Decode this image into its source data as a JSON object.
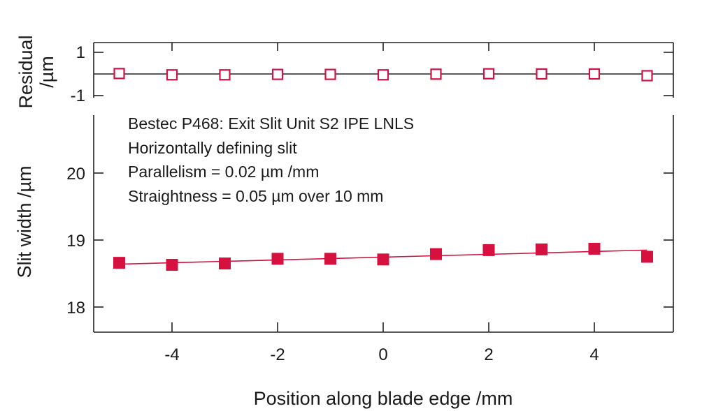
{
  "chart_data": [
    {
      "type": "scatter",
      "panel": "residual",
      "ylabel_lines": [
        "Residual",
        "/µm"
      ],
      "xlim": [
        -5.5,
        5.5
      ],
      "ylim": [
        -1.1,
        1.1
      ],
      "yticks": [
        1,
        -1
      ],
      "ytick_labels": [
        "1",
        "-1"
      ],
      "baseline": 0,
      "series": [
        {
          "marker": "open-square",
          "color": "#cc1446",
          "x": [
            -5,
            -4,
            -3,
            -2,
            -1,
            0,
            1,
            2,
            3,
            4,
            5
          ],
          "y": [
            0.02,
            -0.04,
            -0.04,
            -0.02,
            -0.02,
            -0.04,
            -0.01,
            0.01,
            0.0,
            0.0,
            -0.08
          ]
        }
      ]
    },
    {
      "type": "scatter",
      "panel": "main",
      "xlabel": "Position along blade edge /mm",
      "ylabel": "Slit width /µm",
      "xlim": [
        -5.5,
        5.5
      ],
      "ylim": [
        17.65,
        20.85
      ],
      "xticks": [
        -4,
        -2,
        0,
        2,
        4
      ],
      "xtick_labels": [
        "-4",
        "-2",
        "0",
        "2",
        "4"
      ],
      "yticks": [
        18,
        19,
        20
      ],
      "ytick_labels": [
        "18",
        "19",
        "20"
      ],
      "annotations": [
        "Bestec P468: Exit Slit Unit S2 IPE LNLS",
        "Horizontally defining slit",
        "Parallelism = 0.02 µm /mm",
        "Straightness = 0.05 µm over 10 mm"
      ],
      "fit_line": {
        "x": [
          -5,
          5
        ],
        "y": [
          18.64,
          18.85
        ]
      },
      "series": [
        {
          "marker": "filled-square",
          "color": "#d6113f",
          "x": [
            -5,
            -4,
            -3,
            -2,
            -1,
            0,
            1,
            2,
            3,
            4,
            5
          ],
          "y": [
            18.66,
            18.63,
            18.65,
            18.72,
            18.72,
            18.71,
            18.79,
            18.85,
            18.86,
            18.87,
            18.75
          ]
        }
      ]
    }
  ]
}
